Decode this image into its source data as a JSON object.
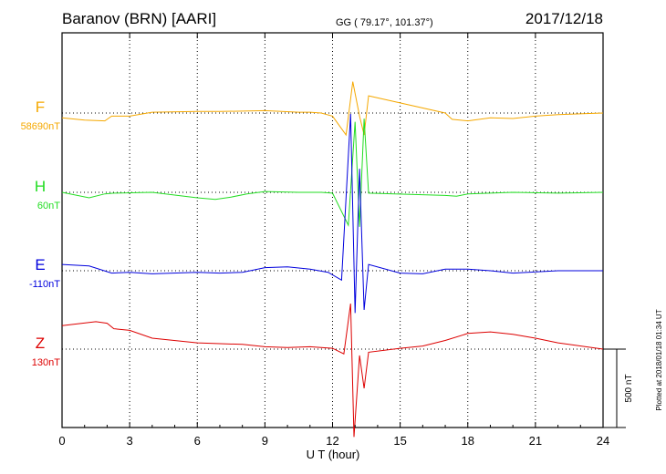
{
  "header": {
    "station": "Baranov (BRN)  [AARI]",
    "coords": "GG ( 79.17°, 101.37°)",
    "date": "2017/12/18"
  },
  "side_note": "Plotted at 2018/01/18 01:34 UT",
  "scale_label": "500 nT",
  "colors": {
    "F": "#f5a800",
    "H": "#22dd22",
    "E": "#0000dd",
    "Z": "#dd0000"
  },
  "chart_data": {
    "type": "line",
    "xlabel": "U T (hour)",
    "xlim": [
      0,
      24
    ],
    "x_ticks": [
      0,
      3,
      6,
      9,
      12,
      15,
      18,
      21,
      24
    ],
    "grid": true,
    "scale_bar_nT": 500,
    "series": [
      {
        "name": "F",
        "baseline_label": "58690nT",
        "color": "#f5a800",
        "points": [
          [
            0,
            -30
          ],
          [
            1,
            -45
          ],
          [
            1.9,
            -50
          ],
          [
            2.2,
            -20
          ],
          [
            3,
            -20
          ],
          [
            4,
            5
          ],
          [
            6,
            10
          ],
          [
            7,
            10
          ],
          [
            9,
            15
          ],
          [
            10.5,
            5
          ],
          [
            11,
            5
          ],
          [
            11.5,
            0
          ],
          [
            12,
            -20
          ],
          [
            12.6,
            -140
          ],
          [
            12.9,
            200
          ],
          [
            13.2,
            -20
          ],
          [
            13.4,
            -140
          ],
          [
            13.6,
            110
          ],
          [
            17,
            0
          ],
          [
            17.3,
            -40
          ],
          [
            18,
            -50
          ],
          [
            19,
            -30
          ],
          [
            20,
            -35
          ],
          [
            21,
            -20
          ],
          [
            22,
            -10
          ],
          [
            24,
            0
          ]
        ]
      },
      {
        "name": "H",
        "baseline_label": "60nT",
        "color": "#22dd22",
        "points": [
          [
            0,
            0
          ],
          [
            1.2,
            -35
          ],
          [
            1.9,
            -10
          ],
          [
            2.3,
            -5
          ],
          [
            4,
            0
          ],
          [
            6,
            -35
          ],
          [
            6.8,
            -45
          ],
          [
            7.5,
            -30
          ],
          [
            8.2,
            -10
          ],
          [
            9,
            5
          ],
          [
            10.5,
            0
          ],
          [
            11.5,
            0
          ],
          [
            12,
            -5
          ],
          [
            12.7,
            -210
          ],
          [
            13,
            450
          ],
          [
            13.2,
            -220
          ],
          [
            13.4,
            470
          ],
          [
            13.6,
            -5
          ],
          [
            17,
            -20
          ],
          [
            17.5,
            -25
          ],
          [
            18,
            -10
          ],
          [
            20,
            0
          ],
          [
            22,
            -5
          ],
          [
            24,
            0
          ]
        ]
      },
      {
        "name": "E",
        "baseline_label": "-110nT",
        "color": "#0000dd",
        "points": [
          [
            0,
            40
          ],
          [
            1.2,
            30
          ],
          [
            2.2,
            -15
          ],
          [
            3,
            -10
          ],
          [
            4,
            -20
          ],
          [
            6,
            -10
          ],
          [
            7,
            -15
          ],
          [
            8,
            -10
          ],
          [
            9,
            20
          ],
          [
            10,
            25
          ],
          [
            11,
            10
          ],
          [
            11.8,
            -10
          ],
          [
            12.4,
            -60
          ],
          [
            12.8,
            1000
          ],
          [
            13,
            -270
          ],
          [
            13.2,
            650
          ],
          [
            13.4,
            -250
          ],
          [
            13.6,
            40
          ],
          [
            15,
            -15
          ],
          [
            16,
            -20
          ],
          [
            17,
            10
          ],
          [
            18,
            10
          ],
          [
            19,
            0
          ],
          [
            20,
            -15
          ],
          [
            22,
            0
          ],
          [
            24,
            0
          ]
        ]
      },
      {
        "name": "Z",
        "baseline_label": "130nT",
        "color": "#dd0000",
        "points": [
          [
            0,
            150
          ],
          [
            1.5,
            175
          ],
          [
            2,
            165
          ],
          [
            2.3,
            130
          ],
          [
            3,
            120
          ],
          [
            4,
            70
          ],
          [
            6,
            40
          ],
          [
            7,
            35
          ],
          [
            8,
            30
          ],
          [
            9,
            15
          ],
          [
            10,
            10
          ],
          [
            11,
            15
          ],
          [
            12,
            5
          ],
          [
            12.5,
            -30
          ],
          [
            12.8,
            290
          ],
          [
            12.95,
            -560
          ],
          [
            13.2,
            -40
          ],
          [
            13.4,
            -250
          ],
          [
            13.6,
            -20
          ],
          [
            15,
            5
          ],
          [
            16,
            20
          ],
          [
            17,
            55
          ],
          [
            18,
            100
          ],
          [
            19,
            110
          ],
          [
            20,
            95
          ],
          [
            21,
            70
          ],
          [
            22,
            40
          ],
          [
            24,
            0
          ]
        ]
      }
    ]
  }
}
